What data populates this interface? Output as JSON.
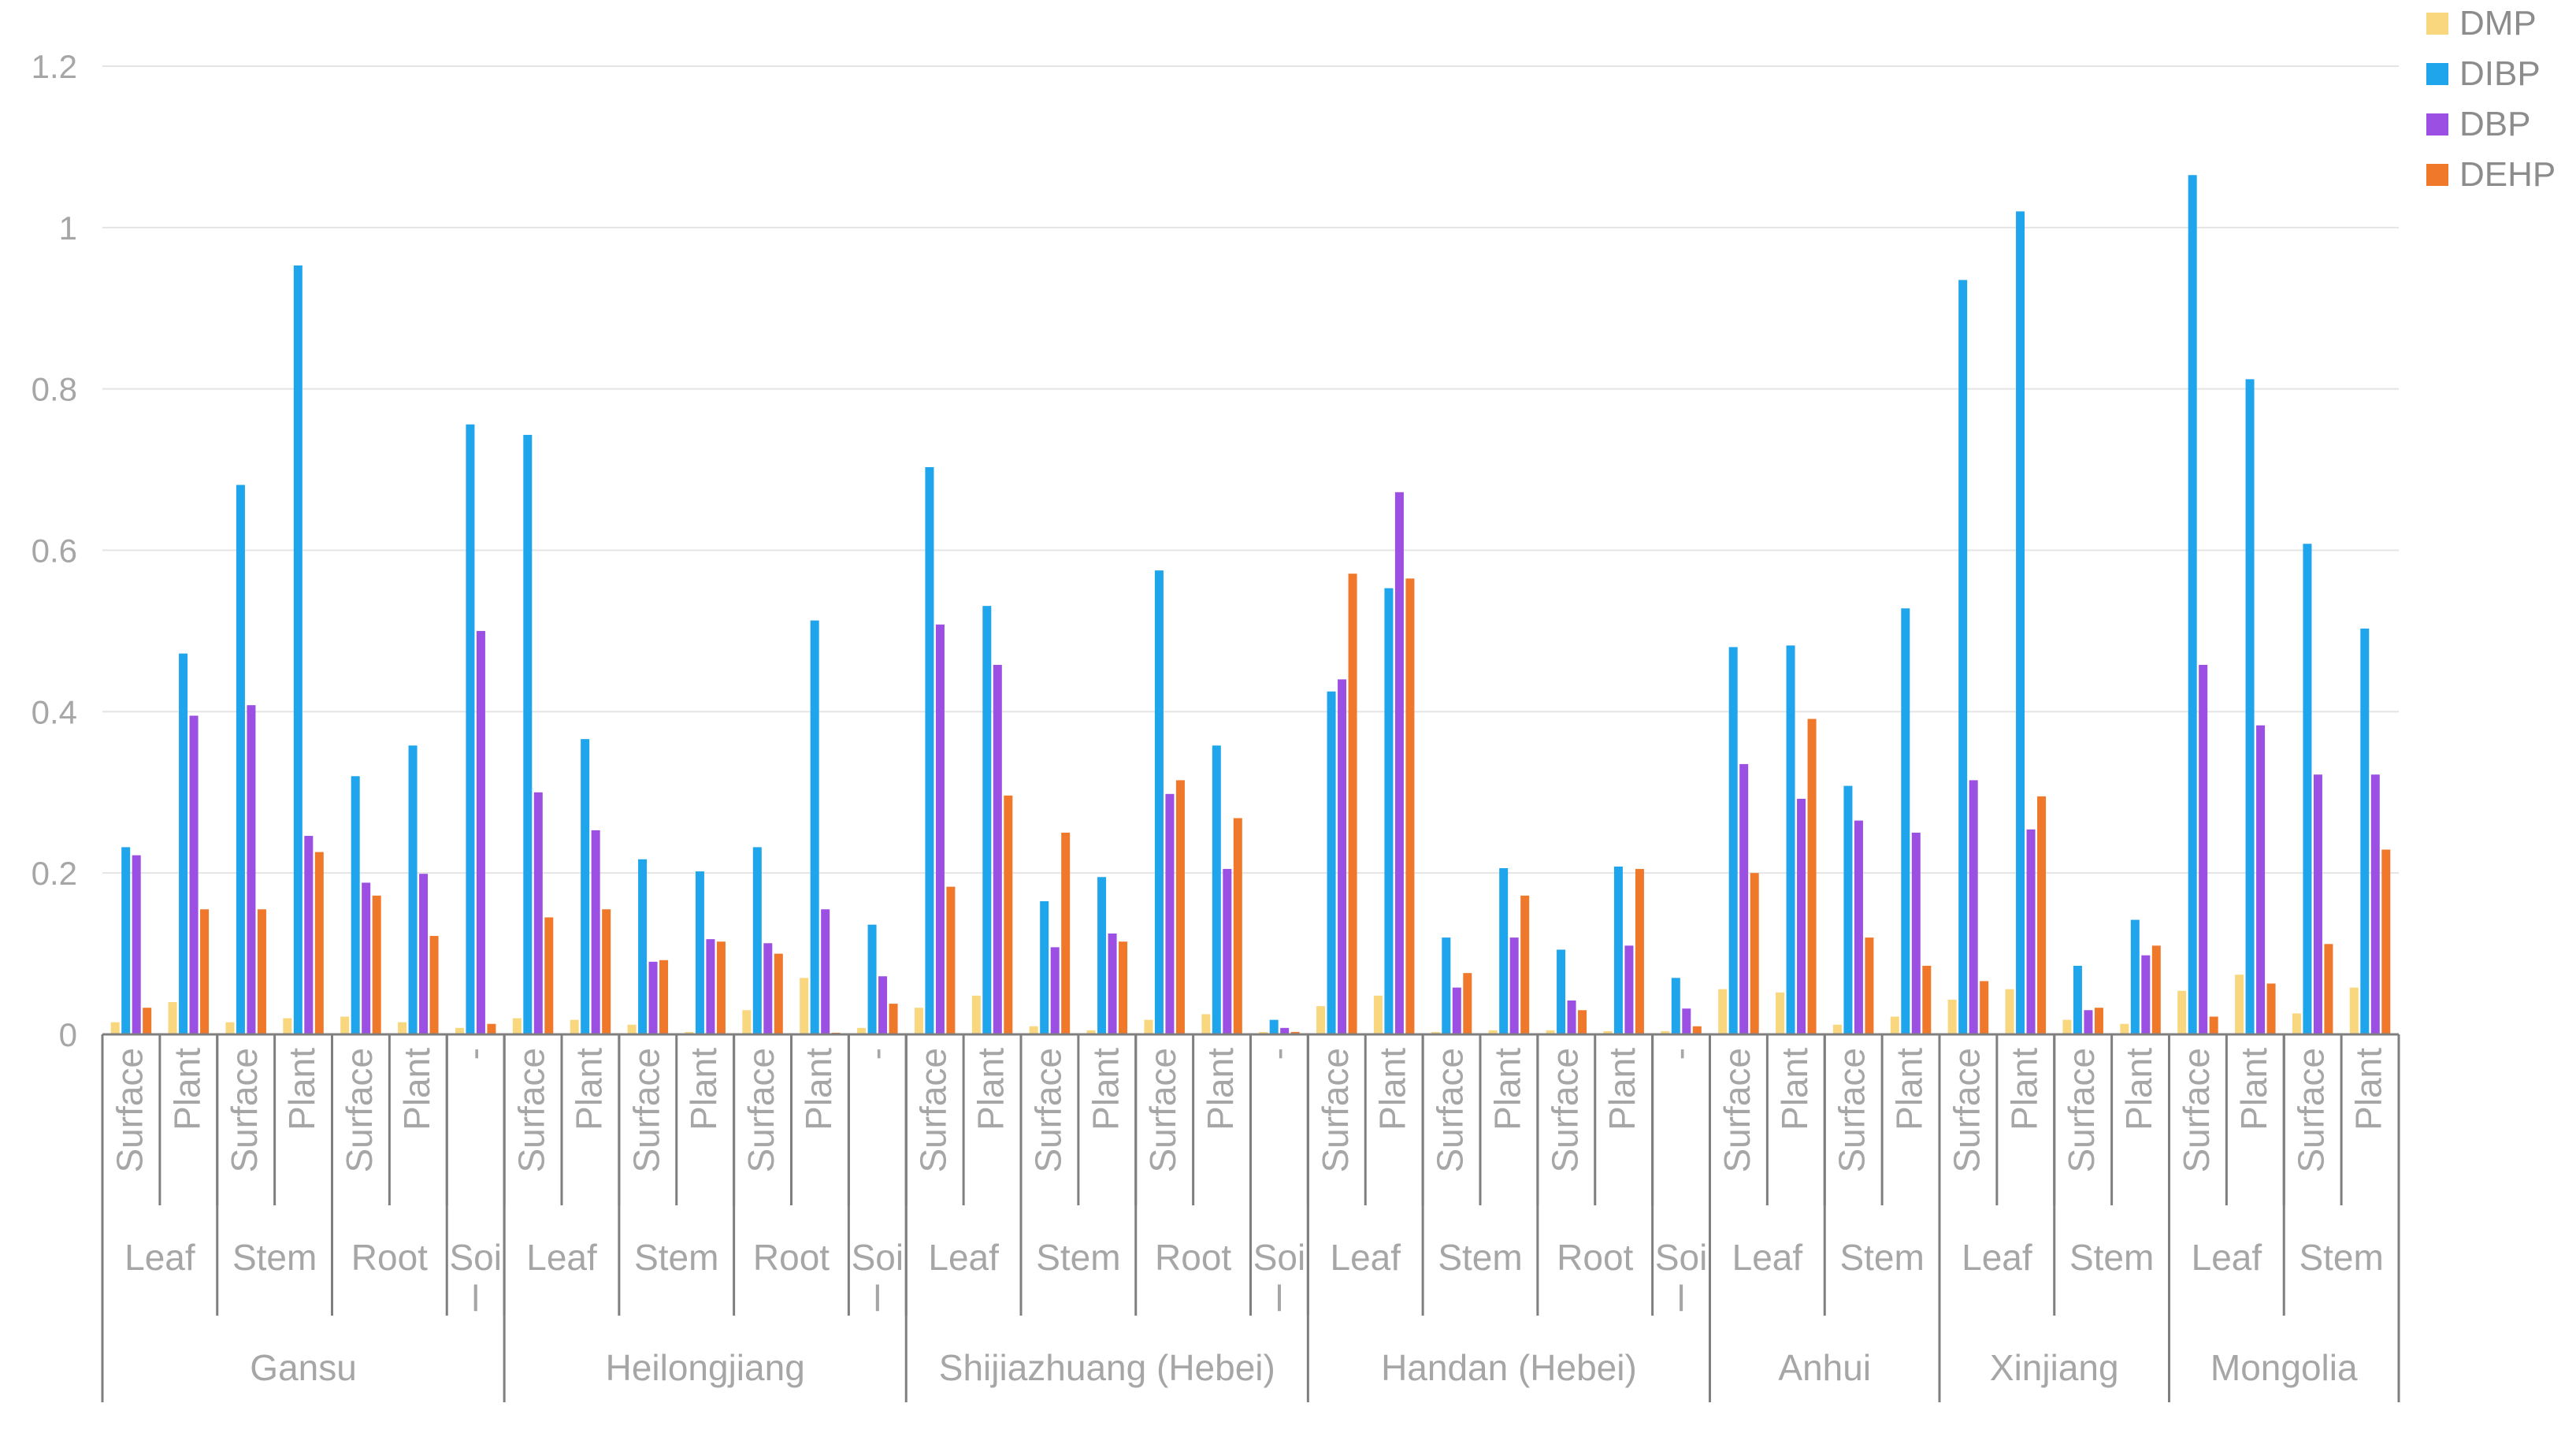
{
  "chart_data": {
    "type": "bar",
    "title": "",
    "xlabel": "",
    "ylabel": "",
    "ylim": [
      0,
      1.2
    ],
    "yticks": [
      "0",
      "0.2",
      "0.4",
      "0.6",
      "0.8",
      "1",
      "1.2"
    ],
    "ytick_values": [
      0,
      0.2,
      0.4,
      0.6,
      0.8,
      1.0,
      1.2
    ],
    "grid": true,
    "legend_position": "top-right",
    "colors": {
      "DMP": "#F9D77E",
      "DIBP": "#1FA5EC",
      "DBP": "#9B50E3",
      "DEHP": "#F0782A",
      "axis": "#7f7f7f",
      "grid": "#e4e4e4"
    },
    "series_names": [
      "DMP",
      "DIBP",
      "DBP",
      "DEHP"
    ],
    "regions": [
      {
        "name": "Gansu",
        "groups": [
          {
            "name": "Leaf",
            "cats": [
              {
                "label": "Surface",
                "values": [
                  0.015,
                  0.232,
                  0.222,
                  0.033
                ]
              },
              {
                "label": "Plant",
                "values": [
                  0.04,
                  0.472,
                  0.395,
                  0.155
                ]
              }
            ]
          },
          {
            "name": "Stem",
            "cats": [
              {
                "label": "Surface",
                "values": [
                  0.015,
                  0.681,
                  0.408,
                  0.155
                ]
              },
              {
                "label": "Plant",
                "values": [
                  0.02,
                  0.953,
                  0.246,
                  0.226
                ]
              }
            ]
          },
          {
            "name": "Root",
            "cats": [
              {
                "label": "Surface",
                "values": [
                  0.022,
                  0.32,
                  0.188,
                  0.172
                ]
              },
              {
                "label": "Plant",
                "values": [
                  0.015,
                  0.358,
                  0.199,
                  0.122
                ]
              }
            ]
          },
          {
            "name": "Soi\nl",
            "cats": [
              {
                "label": "-",
                "values": [
                  0.008,
                  0.756,
                  0.5,
                  0.013
                ]
              }
            ]
          }
        ]
      },
      {
        "name": "Heilongjiang",
        "groups": [
          {
            "name": "Leaf",
            "cats": [
              {
                "label": "Surface",
                "values": [
                  0.02,
                  0.743,
                  0.3,
                  0.145
                ]
              },
              {
                "label": "Plant",
                "values": [
                  0.018,
                  0.366,
                  0.253,
                  0.155
                ]
              }
            ]
          },
          {
            "name": "Stem",
            "cats": [
              {
                "label": "Surface",
                "values": [
                  0.012,
                  0.217,
                  0.09,
                  0.092
                ]
              },
              {
                "label": "Plant",
                "values": [
                  0.003,
                  0.202,
                  0.118,
                  0.115
                ]
              }
            ]
          },
          {
            "name": "Root",
            "cats": [
              {
                "label": "Surface",
                "values": [
                  0.03,
                  0.232,
                  0.113,
                  0.1
                ]
              },
              {
                "label": "Plant",
                "values": [
                  0.07,
                  0.513,
                  0.155,
                  0.002
                ]
              }
            ]
          },
          {
            "name": "Soi\nl",
            "cats": [
              {
                "label": "-",
                "values": [
                  0.008,
                  0.136,
                  0.072,
                  0.038
                ]
              }
            ]
          }
        ]
      },
      {
        "name": "Shijiazhuang (Hebei)",
        "groups": [
          {
            "name": "Leaf",
            "cats": [
              {
                "label": "Surface",
                "values": [
                  0.033,
                  0.703,
                  0.508,
                  0.183
                ]
              },
              {
                "label": "Plant",
                "values": [
                  0.048,
                  0.531,
                  0.458,
                  0.296
                ]
              }
            ]
          },
          {
            "name": "Stem",
            "cats": [
              {
                "label": "Surface",
                "values": [
                  0.01,
                  0.165,
                  0.108,
                  0.25
                ]
              },
              {
                "label": "Plant",
                "values": [
                  0.005,
                  0.195,
                  0.125,
                  0.115
                ]
              }
            ]
          },
          {
            "name": "Root",
            "cats": [
              {
                "label": "Surface",
                "values": [
                  0.018,
                  0.575,
                  0.298,
                  0.315
                ]
              },
              {
                "label": "Plant",
                "values": [
                  0.025,
                  0.358,
                  0.205,
                  0.268
                ]
              }
            ]
          },
          {
            "name": "Soi\nl",
            "cats": [
              {
                "label": "-",
                "values": [
                  0.003,
                  0.018,
                  0.008,
                  0.003
                ]
              }
            ]
          }
        ]
      },
      {
        "name": "Handan (Hebei)",
        "groups": [
          {
            "name": "Leaf",
            "cats": [
              {
                "label": "Surface",
                "values": [
                  0.035,
                  0.425,
                  0.44,
                  0.571
                ]
              },
              {
                "label": "Plant",
                "values": [
                  0.048,
                  0.553,
                  0.672,
                  0.565
                ]
              }
            ]
          },
          {
            "name": "Stem",
            "cats": [
              {
                "label": "Surface",
                "values": [
                  0.003,
                  0.12,
                  0.058,
                  0.076
                ]
              },
              {
                "label": "Plant",
                "values": [
                  0.005,
                  0.206,
                  0.12,
                  0.172
                ]
              }
            ]
          },
          {
            "name": "Root",
            "cats": [
              {
                "label": "Surface",
                "values": [
                  0.005,
                  0.105,
                  0.042,
                  0.03
                ]
              },
              {
                "label": "Plant",
                "values": [
                  0.004,
                  0.208,
                  0.11,
                  0.205
                ]
              }
            ]
          },
          {
            "name": "Soi\nl",
            "cats": [
              {
                "label": "-",
                "values": [
                  0.004,
                  0.07,
                  0.032,
                  0.01
                ]
              }
            ]
          }
        ]
      },
      {
        "name": "Anhui",
        "groups": [
          {
            "name": "Leaf",
            "cats": [
              {
                "label": "Surface",
                "values": [
                  0.056,
                  0.48,
                  0.335,
                  0.2
                ]
              },
              {
                "label": "Plant",
                "values": [
                  0.052,
                  0.482,
                  0.292,
                  0.391
                ]
              }
            ]
          },
          {
            "name": "Stem",
            "cats": [
              {
                "label": "Surface",
                "values": [
                  0.012,
                  0.308,
                  0.265,
                  0.12
                ]
              },
              {
                "label": "Plant",
                "values": [
                  0.022,
                  0.528,
                  0.25,
                  0.085
                ]
              }
            ]
          }
        ]
      },
      {
        "name": "Xinjiang",
        "groups": [
          {
            "name": "Leaf",
            "cats": [
              {
                "label": "Surface",
                "values": [
                  0.043,
                  0.935,
                  0.315,
                  0.066
                ]
              },
              {
                "label": "Plant",
                "values": [
                  0.056,
                  1.02,
                  0.254,
                  0.295
                ]
              }
            ]
          },
          {
            "name": "Stem",
            "cats": [
              {
                "label": "Surface",
                "values": [
                  0.018,
                  0.085,
                  0.03,
                  0.033
                ]
              },
              {
                "label": "Plant",
                "values": [
                  0.013,
                  0.142,
                  0.098,
                  0.11
                ]
              }
            ]
          }
        ]
      },
      {
        "name": "Mongolia",
        "groups": [
          {
            "name": "Leaf",
            "cats": [
              {
                "label": "Surface",
                "values": [
                  0.054,
                  1.065,
                  0.458,
                  0.022
                ]
              },
              {
                "label": "Plant",
                "values": [
                  0.074,
                  0.812,
                  0.383,
                  0.063
                ]
              }
            ]
          },
          {
            "name": "Stem",
            "cats": [
              {
                "label": "Surface",
                "values": [
                  0.026,
                  0.608,
                  0.322,
                  0.112
                ]
              },
              {
                "label": "Plant",
                "values": [
                  0.058,
                  0.503,
                  0.322,
                  0.229
                ]
              }
            ]
          }
        ]
      }
    ]
  }
}
